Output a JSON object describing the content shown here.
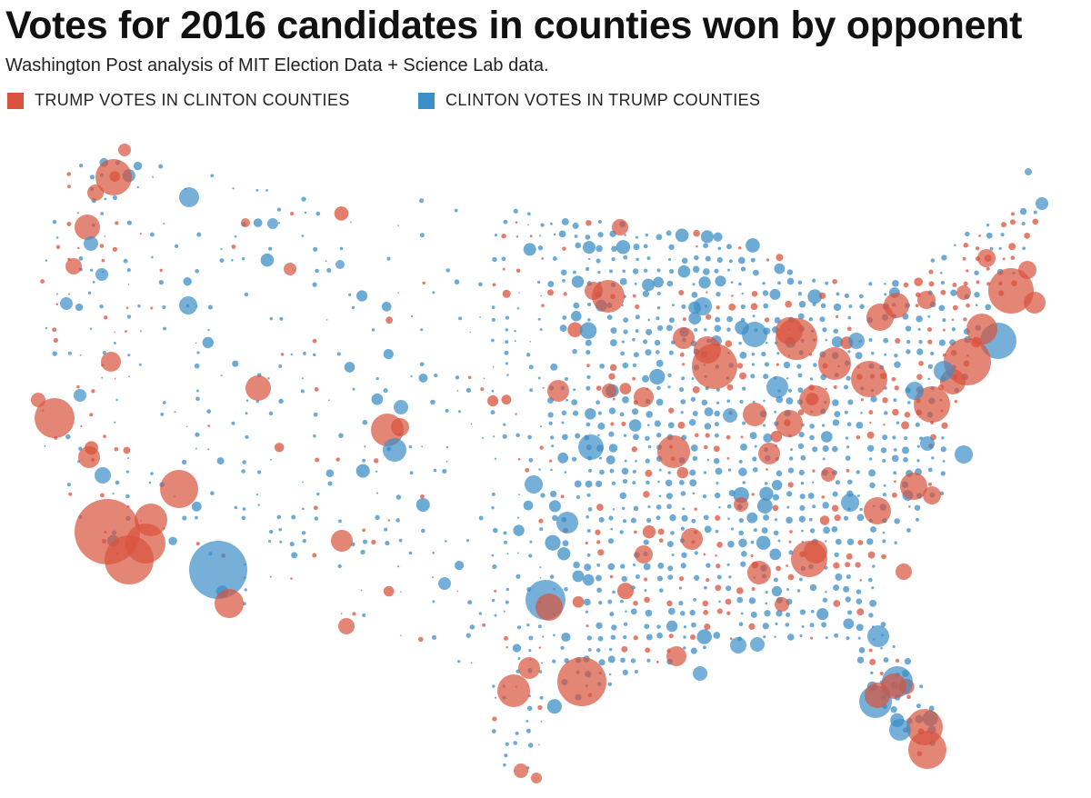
{
  "header": {
    "title": "Votes for 2016 candidates in counties won by opponent",
    "subtitle": "Washington Post analysis of MIT Election Data + Science Lab data."
  },
  "legend": {
    "items": [
      {
        "label": "TRUMP VOTES IN CLINTON COUNTIES",
        "color": "#d9533c"
      },
      {
        "label": "CLINTON VOTES IN TRUMP COUNTIES",
        "color": "#3c8fc7"
      }
    ]
  },
  "colors": {
    "trump": "#d9533c",
    "clinton": "#3c8fc7",
    "background": "#ffffff"
  }
}
